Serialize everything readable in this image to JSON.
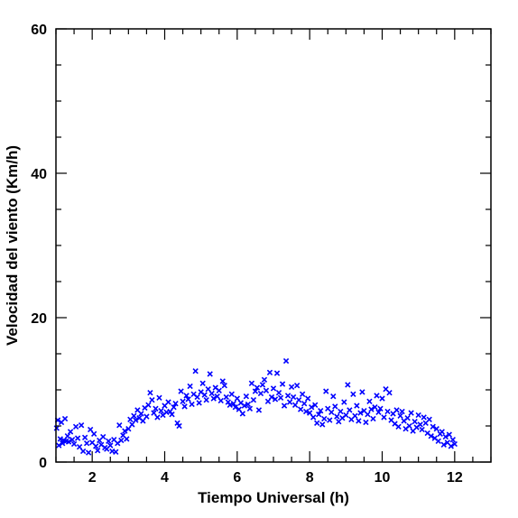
{
  "chart_data": {
    "type": "scatter",
    "title": "",
    "xlabel": "Tiempo Universal (h)",
    "ylabel": "Velocidad del viento (Km/h)",
    "xlim": [
      1,
      13
    ],
    "ylim": [
      0,
      60
    ],
    "x_ticks": [
      2,
      4,
      6,
      8,
      10,
      12
    ],
    "x_tick_labels": [
      "2",
      "4",
      "6",
      "8",
      "10",
      "12"
    ],
    "y_ticks": [
      0,
      20,
      40,
      60
    ],
    "y_tick_labels": [
      "0",
      "20",
      "40",
      "60"
    ],
    "x_minor_step": 0.5,
    "y_minor_step": 5,
    "marker": "x",
    "marker_color": "#0000ff",
    "grid": false,
    "series": [
      {
        "points": [
          [
            1.02,
            4.7
          ],
          [
            1.05,
            5.8
          ],
          [
            1.08,
            2.3
          ],
          [
            1.12,
            3.2
          ],
          [
            1.15,
            5.5
          ],
          [
            1.18,
            2.6
          ],
          [
            1.22,
            3.0
          ],
          [
            1.25,
            6.0
          ],
          [
            1.28,
            2.9
          ],
          [
            1.32,
            3.6
          ],
          [
            1.35,
            2.8
          ],
          [
            1.4,
            4.2
          ],
          [
            1.45,
            3.1
          ],
          [
            1.5,
            2.5
          ],
          [
            1.55,
            4.9
          ],
          [
            1.6,
            3.3
          ],
          [
            1.65,
            2.1
          ],
          [
            1.7,
            5.1
          ],
          [
            1.75,
            1.5
          ],
          [
            1.8,
            3.4
          ],
          [
            1.85,
            2.6
          ],
          [
            1.9,
            1.3
          ],
          [
            1.95,
            4.5
          ],
          [
            2.0,
            2.7
          ],
          [
            2.05,
            3.9
          ],
          [
            2.1,
            2.2
          ],
          [
            2.15,
            1.6
          ],
          [
            2.2,
            3.0
          ],
          [
            2.25,
            2.4
          ],
          [
            2.3,
            3.5
          ],
          [
            2.35,
            2.0
          ],
          [
            2.4,
            1.8
          ],
          [
            2.45,
            2.9
          ],
          [
            2.5,
            2.3
          ],
          [
            2.55,
            1.5
          ],
          [
            2.6,
            3.1
          ],
          [
            2.65,
            1.4
          ],
          [
            2.7,
            2.6
          ],
          [
            2.75,
            5.1
          ],
          [
            2.8,
            3.0
          ],
          [
            2.85,
            3.7
          ],
          [
            2.9,
            4.3
          ],
          [
            2.95,
            3.2
          ],
          [
            3.0,
            4.6
          ],
          [
            3.05,
            5.9
          ],
          [
            3.1,
            5.2
          ],
          [
            3.15,
            6.4
          ],
          [
            3.2,
            5.8
          ],
          [
            3.25,
            7.2
          ],
          [
            3.3,
            6.1
          ],
          [
            3.35,
            6.7
          ],
          [
            3.4,
            5.7
          ],
          [
            3.45,
            7.5
          ],
          [
            3.5,
            6.3
          ],
          [
            3.55,
            7.9
          ],
          [
            3.6,
            9.6
          ],
          [
            3.65,
            8.6
          ],
          [
            3.7,
            6.8
          ],
          [
            3.75,
            7.4
          ],
          [
            3.8,
            6.2
          ],
          [
            3.85,
            8.9
          ],
          [
            3.9,
            7.1
          ],
          [
            3.95,
            6.5
          ],
          [
            4.0,
            7.8
          ],
          [
            4.05,
            6.9
          ],
          [
            4.1,
            8.3
          ],
          [
            4.15,
            7.0
          ],
          [
            4.2,
            6.6
          ],
          [
            4.25,
            7.6
          ],
          [
            4.3,
            8.1
          ],
          [
            4.35,
            5.4
          ],
          [
            4.4,
            5.0
          ],
          [
            4.45,
            9.8
          ],
          [
            4.5,
            8.4
          ],
          [
            4.55,
            7.7
          ],
          [
            4.6,
            9.2
          ],
          [
            4.65,
            8.7
          ],
          [
            4.7,
            10.5
          ],
          [
            4.75,
            8.0
          ],
          [
            4.8,
            9.4
          ],
          [
            4.85,
            12.6
          ],
          [
            4.9,
            9.0
          ],
          [
            4.95,
            8.2
          ],
          [
            5.0,
            9.7
          ],
          [
            5.05,
            10.9
          ],
          [
            5.1,
            9.3
          ],
          [
            5.15,
            8.6
          ],
          [
            5.2,
            10.1
          ],
          [
            5.25,
            12.2
          ],
          [
            5.3,
            9.5
          ],
          [
            5.35,
            8.8
          ],
          [
            5.4,
            10.3
          ],
          [
            5.45,
            9.1
          ],
          [
            5.5,
            9.9
          ],
          [
            5.55,
            8.5
          ],
          [
            5.6,
            11.2
          ],
          [
            5.65,
            10.6
          ],
          [
            5.7,
            9.0
          ],
          [
            5.75,
            8.3
          ],
          [
            5.8,
            7.9
          ],
          [
            5.85,
            9.4
          ],
          [
            5.9,
            8.1
          ],
          [
            5.95,
            7.6
          ],
          [
            6.0,
            8.8
          ],
          [
            6.05,
            7.3
          ],
          [
            6.1,
            8.2
          ],
          [
            6.15,
            6.7
          ],
          [
            6.2,
            7.8
          ],
          [
            6.25,
            9.1
          ],
          [
            6.3,
            8.0
          ],
          [
            6.35,
            7.4
          ],
          [
            6.4,
            10.9
          ],
          [
            6.45,
            8.6
          ],
          [
            6.5,
            9.8
          ],
          [
            6.55,
            10.3
          ],
          [
            6.6,
            7.2
          ],
          [
            6.65,
            9.5
          ],
          [
            6.7,
            10.7
          ],
          [
            6.75,
            11.4
          ],
          [
            6.8,
            9.9
          ],
          [
            6.85,
            8.4
          ],
          [
            6.9,
            12.4
          ],
          [
            6.95,
            9.0
          ],
          [
            7.0,
            10.2
          ],
          [
            7.05,
            8.7
          ],
          [
            7.1,
            12.3
          ],
          [
            7.15,
            9.6
          ],
          [
            7.2,
            8.9
          ],
          [
            7.25,
            10.8
          ],
          [
            7.3,
            7.8
          ],
          [
            7.35,
            14.0
          ],
          [
            7.4,
            9.2
          ],
          [
            7.45,
            8.3
          ],
          [
            7.5,
            10.4
          ],
          [
            7.55,
            9.0
          ],
          [
            7.6,
            7.9
          ],
          [
            7.65,
            10.6
          ],
          [
            7.7,
            8.6
          ],
          [
            7.75,
            7.3
          ],
          [
            7.8,
            9.4
          ],
          [
            7.85,
            8.1
          ],
          [
            7.9,
            7.0
          ],
          [
            7.95,
            8.8
          ],
          [
            8.0,
            6.8
          ],
          [
            8.05,
            7.6
          ],
          [
            8.1,
            6.2
          ],
          [
            8.15,
            7.9
          ],
          [
            8.2,
            5.4
          ],
          [
            8.25,
            6.6
          ],
          [
            8.3,
            7.1
          ],
          [
            8.35,
            5.2
          ],
          [
            8.4,
            6.0
          ],
          [
            8.45,
            9.8
          ],
          [
            8.5,
            7.4
          ],
          [
            8.55,
            5.8
          ],
          [
            8.6,
            6.9
          ],
          [
            8.65,
            9.1
          ],
          [
            8.7,
            7.7
          ],
          [
            8.75,
            6.3
          ],
          [
            8.8,
            5.6
          ],
          [
            8.85,
            7.0
          ],
          [
            8.9,
            6.1
          ],
          [
            8.95,
            8.3
          ],
          [
            9.0,
            6.5
          ],
          [
            9.05,
            10.7
          ],
          [
            9.1,
            7.2
          ],
          [
            9.15,
            5.9
          ],
          [
            9.2,
            9.4
          ],
          [
            9.25,
            6.4
          ],
          [
            9.3,
            7.8
          ],
          [
            9.35,
            5.7
          ],
          [
            9.4,
            6.8
          ],
          [
            9.45,
            9.7
          ],
          [
            9.5,
            7.1
          ],
          [
            9.55,
            5.5
          ],
          [
            9.6,
            6.6
          ],
          [
            9.65,
            8.4
          ],
          [
            9.7,
            7.3
          ],
          [
            9.75,
            6.0
          ],
          [
            9.8,
            7.6
          ],
          [
            9.85,
            9.2
          ],
          [
            9.9,
            6.9
          ],
          [
            9.95,
            7.4
          ],
          [
            10.0,
            8.8
          ],
          [
            10.05,
            6.2
          ],
          [
            10.1,
            10.1
          ],
          [
            10.15,
            7.0
          ],
          [
            10.2,
            9.6
          ],
          [
            10.25,
            5.8
          ],
          [
            10.3,
            6.7
          ],
          [
            10.35,
            5.3
          ],
          [
            10.4,
            7.2
          ],
          [
            10.45,
            4.9
          ],
          [
            10.5,
            6.4
          ],
          [
            10.55,
            7.0
          ],
          [
            10.6,
            5.7
          ],
          [
            10.65,
            4.6
          ],
          [
            10.7,
            6.1
          ],
          [
            10.75,
            5.0
          ],
          [
            10.8,
            6.8
          ],
          [
            10.85,
            4.3
          ],
          [
            10.9,
            5.6
          ],
          [
            10.95,
            4.8
          ],
          [
            11.0,
            6.5
          ],
          [
            11.05,
            5.2
          ],
          [
            11.1,
            4.5
          ],
          [
            11.15,
            6.2
          ],
          [
            11.2,
            5.4
          ],
          [
            11.25,
            4.0
          ],
          [
            11.3,
            5.9
          ],
          [
            11.35,
            3.6
          ],
          [
            11.4,
            4.9
          ],
          [
            11.45,
            3.3
          ],
          [
            11.5,
            4.6
          ],
          [
            11.55,
            2.9
          ],
          [
            11.6,
            3.9
          ],
          [
            11.65,
            4.2
          ],
          [
            11.7,
            2.4
          ],
          [
            11.75,
            3.5
          ],
          [
            11.8,
            2.7
          ],
          [
            11.85,
            3.8
          ],
          [
            11.9,
            2.2
          ],
          [
            11.95,
            3.1
          ],
          [
            12.0,
            2.5
          ]
        ]
      }
    ]
  }
}
